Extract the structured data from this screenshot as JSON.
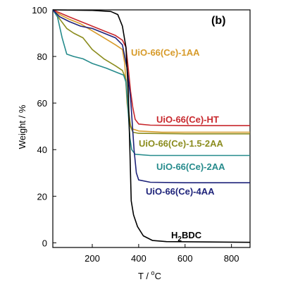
{
  "chart_data": {
    "type": "line",
    "panel_label": "(b)",
    "xlabel_parts": [
      "T / ",
      "o",
      "C"
    ],
    "ylabel": "Weight / %",
    "xlim": [
      30,
      880
    ],
    "ylim": [
      -2,
      100
    ],
    "xticks": [
      200,
      400,
      600,
      800
    ],
    "yticks": [
      0,
      20,
      40,
      60,
      80,
      100
    ],
    "series": [
      {
        "name": "UiO-66(Ce)-1AA",
        "color": "#D79B2A",
        "points": [
          [
            30,
            100
          ],
          [
            60,
            98
          ],
          [
            100,
            96
          ],
          [
            150,
            94
          ],
          [
            200,
            91
          ],
          [
            250,
            88
          ],
          [
            300,
            85
          ],
          [
            330,
            83
          ],
          [
            340,
            77
          ],
          [
            350,
            60
          ],
          [
            360,
            52
          ],
          [
            370,
            49
          ],
          [
            400,
            48
          ],
          [
            500,
            47.5
          ],
          [
            700,
            47.5
          ],
          [
            880,
            47.5
          ]
        ]
      },
      {
        "name": "UiO-66(Ce)-HT",
        "color": "#C8282D",
        "points": [
          [
            30,
            100
          ],
          [
            100,
            97
          ],
          [
            150,
            95
          ],
          [
            200,
            93
          ],
          [
            250,
            91
          ],
          [
            300,
            89
          ],
          [
            330,
            87
          ],
          [
            345,
            84
          ],
          [
            355,
            75
          ],
          [
            365,
            65
          ],
          [
            375,
            58
          ],
          [
            385,
            53
          ],
          [
            400,
            51
          ],
          [
            450,
            50.5
          ],
          [
            600,
            50.3
          ],
          [
            880,
            50.3
          ]
        ]
      },
      {
        "name": "UiO-66(Ce)-1.5-2AA",
        "color": "#8B8C1E",
        "points": [
          [
            30,
            100
          ],
          [
            60,
            96
          ],
          [
            90,
            92
          ],
          [
            120,
            90
          ],
          [
            160,
            88
          ],
          [
            200,
            83
          ],
          [
            250,
            79
          ],
          [
            300,
            76
          ],
          [
            330,
            74
          ],
          [
            345,
            70
          ],
          [
            355,
            58
          ],
          [
            365,
            50
          ],
          [
            375,
            47.5
          ],
          [
            400,
            47
          ],
          [
            600,
            46.8
          ],
          [
            880,
            46.8
          ]
        ]
      },
      {
        "name": "UiO-66(Ce)-2AA",
        "color": "#268B8C",
        "points": [
          [
            30,
            100
          ],
          [
            50,
            97
          ],
          [
            70,
            88
          ],
          [
            90,
            81
          ],
          [
            120,
            80
          ],
          [
            160,
            79
          ],
          [
            200,
            77
          ],
          [
            260,
            75
          ],
          [
            310,
            73
          ],
          [
            335,
            72
          ],
          [
            345,
            69
          ],
          [
            355,
            56
          ],
          [
            362,
            45
          ],
          [
            370,
            40
          ],
          [
            385,
            38
          ],
          [
            450,
            37.5
          ],
          [
            600,
            37.5
          ],
          [
            880,
            37.5
          ]
        ]
      },
      {
        "name": "UiO-66(Ce)-4AA",
        "color": "#1E237A",
        "points": [
          [
            30,
            100
          ],
          [
            60,
            97
          ],
          [
            100,
            95
          ],
          [
            150,
            93
          ],
          [
            200,
            92
          ],
          [
            250,
            90
          ],
          [
            300,
            88
          ],
          [
            330,
            85
          ],
          [
            350,
            75
          ],
          [
            365,
            62
          ],
          [
            380,
            40
          ],
          [
            390,
            30
          ],
          [
            400,
            27
          ],
          [
            450,
            26
          ],
          [
            600,
            25.8
          ],
          [
            880,
            25.8
          ]
        ]
      },
      {
        "name_parts": [
          "H",
          "2",
          "BDC"
        ],
        "color": "#000000",
        "points": [
          [
            30,
            100
          ],
          [
            200,
            99.8
          ],
          [
            280,
            99.3
          ],
          [
            310,
            98
          ],
          [
            330,
            93
          ],
          [
            345,
            84
          ],
          [
            355,
            65
          ],
          [
            362,
            40
          ],
          [
            368,
            18
          ],
          [
            378,
            12
          ],
          [
            395,
            7
          ],
          [
            420,
            3
          ],
          [
            460,
            1
          ],
          [
            520,
            0.5
          ],
          [
            880,
            0.2
          ]
        ]
      }
    ]
  }
}
